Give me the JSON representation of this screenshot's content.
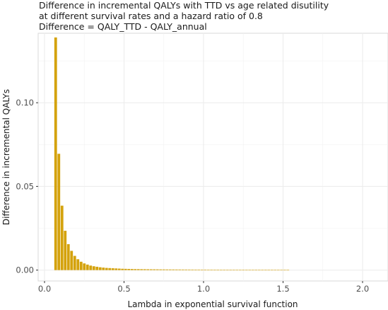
{
  "chart_data": {
    "type": "bar",
    "title_lines": [
      "Difference in incremental QALYs with TTD vs age related disutility",
      "at different survival rates and a hazard ratio of 0.8",
      "Difference = QALY_TTD - QALY_annual"
    ],
    "xlabel": "Lambda in exponential survival function",
    "ylabel": "Difference in incremental QALYs",
    "xlim": [
      -0.04,
      2.16
    ],
    "ylim": [
      -0.0065,
      0.1415
    ],
    "x_ticks": [
      {
        "value": 0.0,
        "label": "0.0"
      },
      {
        "value": 0.5,
        "label": "0.5"
      },
      {
        "value": 1.0,
        "label": "1.0"
      },
      {
        "value": 1.5,
        "label": "1.5"
      },
      {
        "value": 2.0,
        "label": "2.0"
      }
    ],
    "y_ticks": [
      {
        "value": 0.0,
        "label": "0.00"
      },
      {
        "value": 0.05,
        "label": "0.05"
      },
      {
        "value": 0.1,
        "label": "0.10"
      }
    ],
    "bar_width": 0.02,
    "bar_color": "#D4A20C",
    "grid": true,
    "x": [
      0.07,
      0.09,
      0.11,
      0.13,
      0.15,
      0.17,
      0.19,
      0.21,
      0.23,
      0.25,
      0.27,
      0.29,
      0.31,
      0.33,
      0.35,
      0.37,
      0.39,
      0.41,
      0.43,
      0.45,
      0.47,
      0.49,
      0.51,
      0.53,
      0.55,
      0.57,
      0.59,
      0.61,
      0.63,
      0.65,
      0.67,
      0.69,
      0.71,
      0.73,
      0.75,
      0.77,
      0.79,
      0.81,
      0.83,
      0.85,
      0.87,
      0.89,
      0.91,
      0.93,
      0.95,
      0.97,
      0.99,
      1.01,
      1.03,
      1.05,
      1.07,
      1.09,
      1.11,
      1.13,
      1.15,
      1.17,
      1.19,
      1.21,
      1.23,
      1.25,
      1.27,
      1.29,
      1.31,
      1.33,
      1.35,
      1.37,
      1.39,
      1.41,
      1.43,
      1.45,
      1.47,
      1.49,
      1.51,
      1.53
    ],
    "values": [
      0.139,
      0.0695,
      0.0385,
      0.0235,
      0.0155,
      0.0115,
      0.0085,
      0.0065,
      0.005,
      0.004,
      0.0033,
      0.0027,
      0.0023,
      0.002,
      0.0017,
      0.0015,
      0.0013,
      0.0012,
      0.0011,
      0.001,
      0.0009,
      0.0008,
      0.00075,
      0.0007,
      0.00065,
      0.0006,
      0.00058,
      0.00055,
      0.00052,
      0.0005,
      0.00048,
      0.00046,
      0.00044,
      0.00042,
      0.0004,
      0.00039,
      0.00038,
      0.00037,
      0.00036,
      0.00035,
      0.00034,
      0.00033,
      0.00032,
      0.00031,
      0.0003,
      0.0003,
      0.00029,
      0.00029,
      0.00028,
      0.00028,
      0.00027,
      0.00027,
      0.00026,
      0.00026,
      0.00025,
      0.00025,
      0.00025,
      0.00024,
      0.00024,
      0.00024,
      0.00023,
      0.00023,
      0.00023,
      0.00022,
      0.00022,
      0.00022,
      0.00021,
      0.00021,
      0.00021,
      0.0002,
      0.0002,
      0.0002,
      0.0002,
      0.0002
    ]
  }
}
